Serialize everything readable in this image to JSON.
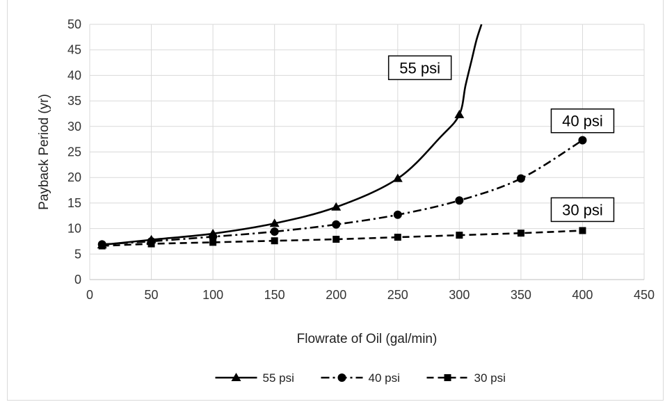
{
  "chart_data": {
    "type": "line",
    "title": "",
    "xlabel": "Flowrate of Oil (gal/min)",
    "ylabel": "Payback Period (yr)",
    "xlim": [
      0,
      450
    ],
    "ylim": [
      0,
      50
    ],
    "x_ticks": [
      0,
      50,
      100,
      150,
      200,
      250,
      300,
      350,
      400,
      450
    ],
    "y_ticks": [
      0,
      5,
      10,
      15,
      20,
      25,
      30,
      35,
      40,
      45,
      50
    ],
    "grid": true,
    "legend_position": "bottom",
    "series": [
      {
        "name": "55 psi",
        "marker": "triangle",
        "line_style": "solid",
        "color": "#000000",
        "points": [
          [
            10,
            6.8
          ],
          [
            50,
            7.8
          ],
          [
            100,
            9.0
          ],
          [
            150,
            11.0
          ],
          [
            200,
            14.2
          ],
          [
            250,
            19.8
          ],
          [
            300,
            32.3
          ]
        ],
        "curve_extension": [
          [
            285,
            28.0
          ],
          [
            300,
            32.3
          ],
          [
            305,
            38.0
          ],
          [
            310,
            43.0
          ],
          [
            314,
            47.0
          ],
          [
            318,
            50.0
          ]
        ]
      },
      {
        "name": "40 psi",
        "marker": "circle",
        "line_style": "dash-dot",
        "color": "#000000",
        "points": [
          [
            10,
            6.9
          ],
          [
            50,
            7.5
          ],
          [
            100,
            8.4
          ],
          [
            150,
            9.4
          ],
          [
            200,
            10.8
          ],
          [
            250,
            12.7
          ],
          [
            300,
            15.5
          ],
          [
            350,
            19.8
          ],
          [
            400,
            27.3
          ]
        ]
      },
      {
        "name": "30 psi",
        "marker": "square",
        "line_style": "dashed",
        "color": "#000000",
        "points": [
          [
            10,
            6.6
          ],
          [
            50,
            7.0
          ],
          [
            100,
            7.3
          ],
          [
            150,
            7.6
          ],
          [
            200,
            7.9
          ],
          [
            250,
            8.3
          ],
          [
            300,
            8.7
          ],
          [
            350,
            9.1
          ],
          [
            400,
            9.6
          ]
        ]
      }
    ],
    "annotations": [
      {
        "text": "55 psi",
        "anchor": [
          268,
          41.5
        ]
      },
      {
        "text": "40 psi",
        "anchor": [
          400,
          31.1
        ]
      },
      {
        "text": "30 psi",
        "anchor": [
          400,
          13.7
        ]
      }
    ]
  }
}
